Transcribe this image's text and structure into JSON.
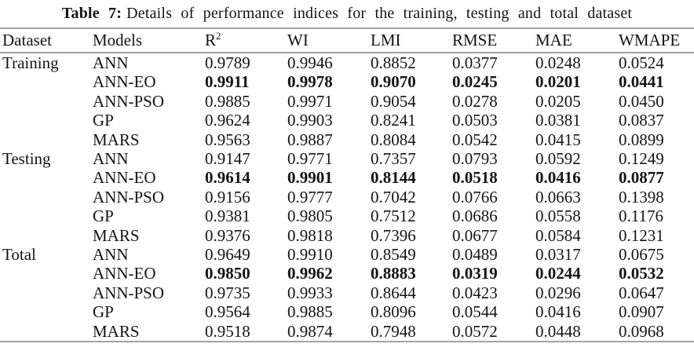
{
  "table": {
    "caption_label": "Table 7:",
    "caption_text": "Details of performance indices for the training, testing and total dataset",
    "columns": [
      {
        "label": "Dataset"
      },
      {
        "label": "Models"
      },
      {
        "label": "R",
        "sup": "2"
      },
      {
        "label": "WI"
      },
      {
        "label": "LMI"
      },
      {
        "label": "RMSE"
      },
      {
        "label": "MAE"
      },
      {
        "label": "WMAPE"
      }
    ],
    "metrics_order": [
      "r2",
      "wi",
      "lmi",
      "rmse",
      "mae",
      "wmape"
    ],
    "groups": [
      {
        "dataset": "Training",
        "rows": [
          {
            "model": "ANN",
            "r2": "0.9789",
            "wi": "0.9946",
            "lmi": "0.8852",
            "rmse": "0.0377",
            "mae": "0.0248",
            "wmape": "0.0524",
            "bold": false
          },
          {
            "model": "ANN-EO",
            "r2": "0.9911",
            "wi": "0.9978",
            "lmi": "0.9070",
            "rmse": "0.0245",
            "mae": "0.0201",
            "wmape": "0.0441",
            "bold": true
          },
          {
            "model": "ANN-PSO",
            "r2": "0.9885",
            "wi": "0.9971",
            "lmi": "0.9054",
            "rmse": "0.0278",
            "mae": "0.0205",
            "wmape": "0.0450",
            "bold": false
          },
          {
            "model": "GP",
            "r2": "0.9624",
            "wi": "0.9903",
            "lmi": "0.8241",
            "rmse": "0.0503",
            "mae": "0.0381",
            "wmape": "0.0837",
            "bold": false
          },
          {
            "model": "MARS",
            "r2": "0.9563",
            "wi": "0.9887",
            "lmi": "0.8084",
            "rmse": "0.0542",
            "mae": "0.0415",
            "wmape": "0.0899",
            "bold": false
          }
        ]
      },
      {
        "dataset": "Testing",
        "rows": [
          {
            "model": "ANN",
            "r2": "0.9147",
            "wi": "0.9771",
            "lmi": "0.7357",
            "rmse": "0.0793",
            "mae": "0.0592",
            "wmape": "0.1249",
            "bold": false
          },
          {
            "model": "ANN-EO",
            "r2": "0.9614",
            "wi": "0.9901",
            "lmi": "0.8144",
            "rmse": "0.0518",
            "mae": "0.0416",
            "wmape": "0.0877",
            "bold": true
          },
          {
            "model": "ANN-PSO",
            "r2": "0.9156",
            "wi": "0.9777",
            "lmi": "0.7042",
            "rmse": "0.0766",
            "mae": "0.0663",
            "wmape": "0.1398",
            "bold": false
          },
          {
            "model": "GP",
            "r2": "0.9381",
            "wi": "0.9805",
            "lmi": "0.7512",
            "rmse": "0.0686",
            "mae": "0.0558",
            "wmape": "0.1176",
            "bold": false
          },
          {
            "model": "MARS",
            "r2": "0.9376",
            "wi": "0.9818",
            "lmi": "0.7396",
            "rmse": "0.0677",
            "mae": "0.0584",
            "wmape": "0.1231",
            "bold": false
          }
        ]
      },
      {
        "dataset": "Total",
        "rows": [
          {
            "model": "ANN",
            "r2": "0.9649",
            "wi": "0.9910",
            "lmi": "0.8549",
            "rmse": "0.0489",
            "mae": "0.0317",
            "wmape": "0.0675",
            "bold": false
          },
          {
            "model": "ANN-EO",
            "r2": "0.9850",
            "wi": "0.9962",
            "lmi": "0.8883",
            "rmse": "0.0319",
            "mae": "0.0244",
            "wmape": "0.0532",
            "bold": true
          },
          {
            "model": "ANN-PSO",
            "r2": "0.9735",
            "wi": "0.9933",
            "lmi": "0.8644",
            "rmse": "0.0423",
            "mae": "0.0296",
            "wmape": "0.0647",
            "bold": false
          },
          {
            "model": "GP",
            "r2": "0.9564",
            "wi": "0.9885",
            "lmi": "0.8096",
            "rmse": "0.0544",
            "mae": "0.0416",
            "wmape": "0.0907",
            "bold": false
          },
          {
            "model": "MARS",
            "r2": "0.9518",
            "wi": "0.9874",
            "lmi": "0.7948",
            "rmse": "0.0572",
            "mae": "0.0448",
            "wmape": "0.0968",
            "bold": false
          }
        ]
      }
    ],
    "colors": {
      "text": "#141414",
      "rule": "#a2a2a2",
      "background": "#ffffff"
    }
  }
}
